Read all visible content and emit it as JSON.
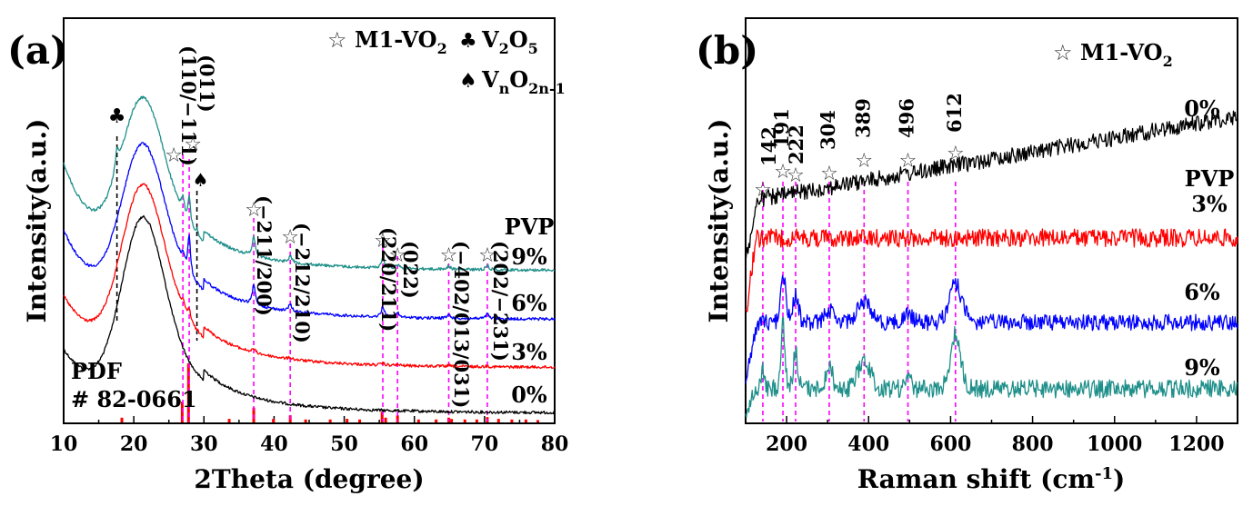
{
  "chart_data": [
    {
      "panel": "(a)",
      "type": "line",
      "title": "",
      "xlabel": "2Theta (degree)",
      "ylabel": "Intensity(a.u.)",
      "xlim": [
        10,
        80
      ],
      "x_ticks": [
        10,
        20,
        30,
        40,
        50,
        60,
        70,
        80
      ],
      "series": [
        {
          "name": "0%",
          "color": "#000000",
          "offset": 0
        },
        {
          "name": "3%",
          "color": "#ff0000",
          "offset": 1
        },
        {
          "name": "6%",
          "color": "#0000ff",
          "offset": 2
        },
        {
          "name": "9%",
          "color": "#1f8f8a",
          "offset": 3
        }
      ],
      "series_prefix_label": "PVP",
      "peaks": [
        {
          "two_theta": 27.0,
          "label": "(110/−111)",
          "marker": "star"
        },
        {
          "two_theta": 27.9,
          "label": "(011)",
          "marker": "star"
        },
        {
          "two_theta": 37.1,
          "label": "(−211/200)",
          "marker": "star"
        },
        {
          "two_theta": 42.3,
          "label": "(−212/210)",
          "marker": "star"
        },
        {
          "two_theta": 55.5,
          "label": "(220/211)",
          "marker": "star"
        },
        {
          "two_theta": 57.6,
          "label": "(022)",
          "marker": "star"
        },
        {
          "two_theta": 64.9,
          "label": "(−402/013/031)",
          "marker": "star"
        },
        {
          "two_theta": 70.4,
          "label": "(202/−231)",
          "marker": "star"
        }
      ],
      "other_phases": [
        {
          "two_theta": 17.6,
          "marker": "club",
          "phase": "V2O5"
        },
        {
          "two_theta": 29.0,
          "marker": "spade",
          "phase": "VnO2n-1"
        }
      ],
      "legend": [
        {
          "symbol": "☆",
          "text": "M1-VO",
          "sub": "2"
        },
        {
          "symbol": "♣",
          "text": "V",
          "sub": "2",
          "text2": "O",
          "sub2": "5"
        },
        {
          "symbol": "♠",
          "text": "V",
          "sub": "n",
          "text2": "O",
          "sub2": "2n-1"
        }
      ],
      "reference_label_1": "PDF",
      "reference_label_2": "# 82-0661",
      "reference_sticks": [
        {
          "two_theta": 18.3,
          "height": 0.08
        },
        {
          "two_theta": 26.9,
          "height": 0.35
        },
        {
          "two_theta": 27.8,
          "height": 1.0
        },
        {
          "two_theta": 33.6,
          "height": 0.06
        },
        {
          "two_theta": 37.1,
          "height": 0.25
        },
        {
          "two_theta": 39.9,
          "height": 0.06
        },
        {
          "two_theta": 42.3,
          "height": 0.12
        },
        {
          "two_theta": 44.5,
          "height": 0.05
        },
        {
          "two_theta": 48.0,
          "height": 0.05
        },
        {
          "two_theta": 50.4,
          "height": 0.06
        },
        {
          "two_theta": 52.2,
          "height": 0.05
        },
        {
          "two_theta": 55.4,
          "height": 0.18
        },
        {
          "two_theta": 55.9,
          "height": 0.08
        },
        {
          "two_theta": 57.6,
          "height": 0.12
        },
        {
          "two_theta": 60.6,
          "height": 0.05
        },
        {
          "two_theta": 63.1,
          "height": 0.05
        },
        {
          "two_theta": 64.9,
          "height": 0.08
        },
        {
          "two_theta": 65.3,
          "height": 0.06
        },
        {
          "two_theta": 67.2,
          "height": 0.05
        },
        {
          "two_theta": 68.9,
          "height": 0.05
        },
        {
          "two_theta": 70.4,
          "height": 0.09
        },
        {
          "two_theta": 72.0,
          "height": 0.06
        },
        {
          "two_theta": 73.9,
          "height": 0.05
        },
        {
          "two_theta": 75.9,
          "height": 0.05
        },
        {
          "two_theta": 77.6,
          "height": 0.04
        }
      ]
    },
    {
      "panel": "(b)",
      "type": "line",
      "title": "",
      "xlabel": "Raman shift (cm",
      "xlabel_sup": "-1",
      "xlabel_end": ")",
      "ylabel": "Intensity(a.u.)",
      "xlim": [
        100,
        1300
      ],
      "x_ticks": [
        200,
        400,
        600,
        800,
        1000,
        1200
      ],
      "series": [
        {
          "name": "0%",
          "color": "#000000"
        },
        {
          "name": "3%",
          "color": "#ff0000"
        },
        {
          "name": "6%",
          "color": "#0000ff"
        },
        {
          "name": "9%",
          "color": "#1f8f8a"
        }
      ],
      "series_prefix_label": "PVP",
      "peaks": [
        {
          "shift": 142,
          "label": "142",
          "marker": "star"
        },
        {
          "shift": 191,
          "label": "191",
          "marker": "star"
        },
        {
          "shift": 222,
          "label": "222",
          "marker": "star"
        },
        {
          "shift": 304,
          "label": "304",
          "marker": "star"
        },
        {
          "shift": 389,
          "label": "389",
          "marker": "star"
        },
        {
          "shift": 496,
          "label": "496",
          "marker": "star"
        },
        {
          "shift": 612,
          "label": "612",
          "marker": "star"
        }
      ],
      "legend": [
        {
          "symbol": "☆",
          "text": "M1-VO",
          "sub": "2"
        }
      ]
    }
  ]
}
